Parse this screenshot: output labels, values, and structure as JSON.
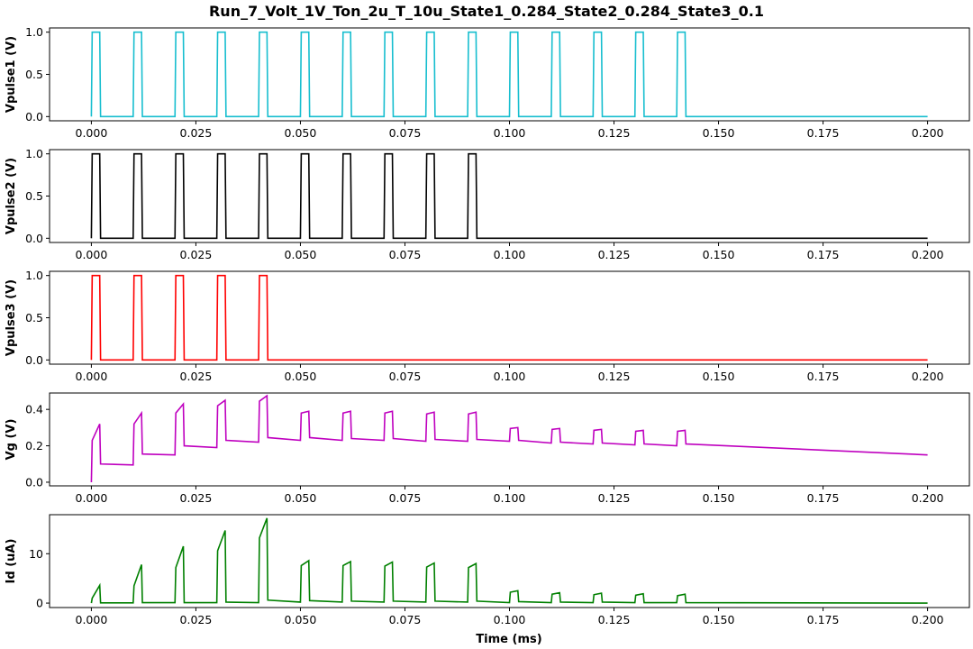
{
  "figure": {
    "title": "Run_7_Volt_1V_Ton_2u_T_10u_State1_0.284_State2_0.284_State3_0.1",
    "xlabel": "Time (ms)"
  },
  "chart_data": [
    {
      "type": "line",
      "ylabel": "Vpulse1 (V)",
      "color": "#17becf",
      "xlim": [
        -0.01,
        0.21
      ],
      "ylim": [
        -0.05,
        1.05
      ],
      "xticks": [
        "0.000",
        "0.025",
        "0.050",
        "0.075",
        "0.100",
        "0.125",
        "0.150",
        "0.175",
        "0.200"
      ],
      "yticks": [
        "0.0",
        "0.5",
        "1.0"
      ],
      "signal": {
        "kind": "pulse",
        "period": 0.01,
        "ton": 0.002,
        "edge": 0.0002,
        "count": 15,
        "high": 1.0,
        "low": 0.0,
        "end": 0.2
      }
    },
    {
      "type": "line",
      "ylabel": "Vpulse2 (V)",
      "color": "#000000",
      "xlim": [
        -0.01,
        0.21
      ],
      "ylim": [
        -0.05,
        1.05
      ],
      "xticks": [
        "0.000",
        "0.025",
        "0.050",
        "0.075",
        "0.100",
        "0.125",
        "0.150",
        "0.175",
        "0.200"
      ],
      "yticks": [
        "0.0",
        "0.5",
        "1.0"
      ],
      "signal": {
        "kind": "pulse",
        "period": 0.01,
        "ton": 0.002,
        "edge": 0.0002,
        "count": 10,
        "high": 1.0,
        "low": 0.0,
        "end": 0.2
      }
    },
    {
      "type": "line",
      "ylabel": "Vpulse3 (V)",
      "color": "#ff0000",
      "xlim": [
        -0.01,
        0.21
      ],
      "ylim": [
        -0.05,
        1.05
      ],
      "xticks": [
        "0.000",
        "0.025",
        "0.050",
        "0.075",
        "0.100",
        "0.125",
        "0.150",
        "0.175",
        "0.200"
      ],
      "yticks": [
        "0.0",
        "0.5",
        "1.0"
      ],
      "signal": {
        "kind": "pulse",
        "period": 0.01,
        "ton": 0.002,
        "edge": 0.0002,
        "count": 5,
        "high": 1.0,
        "low": 0.0,
        "end": 0.2
      }
    },
    {
      "type": "line",
      "ylabel": "Vg (V)",
      "color": "#bf00bf",
      "xlim": [
        -0.01,
        0.21
      ],
      "ylim": [
        -0.02,
        0.49
      ],
      "xticks": [
        "0.000",
        "0.025",
        "0.050",
        "0.075",
        "0.100",
        "0.125",
        "0.150",
        "0.175",
        "0.200"
      ],
      "yticks": [
        "0.0",
        "0.2",
        "0.4"
      ],
      "x": [
        0,
        0.0002,
        0.002,
        0.0022,
        0.01,
        0.0102,
        0.012,
        0.0122,
        0.02,
        0.0202,
        0.022,
        0.0222,
        0.03,
        0.0302,
        0.032,
        0.0322,
        0.04,
        0.0402,
        0.042,
        0.0422,
        0.05,
        0.0502,
        0.052,
        0.0522,
        0.06,
        0.0602,
        0.062,
        0.0622,
        0.07,
        0.0702,
        0.072,
        0.0722,
        0.08,
        0.0802,
        0.082,
        0.0822,
        0.09,
        0.0902,
        0.092,
        0.0922,
        0.1,
        0.1002,
        0.102,
        0.1022,
        0.11,
        0.1102,
        0.112,
        0.1122,
        0.12,
        0.1202,
        0.122,
        0.1222,
        0.13,
        0.1302,
        0.132,
        0.1322,
        0.14,
        0.1402,
        0.142,
        0.1422,
        0.2
      ],
      "y": [
        0,
        0.23,
        0.32,
        0.1,
        0.095,
        0.32,
        0.38,
        0.155,
        0.15,
        0.38,
        0.43,
        0.2,
        0.19,
        0.42,
        0.45,
        0.23,
        0.22,
        0.445,
        0.475,
        0.245,
        0.23,
        0.38,
        0.39,
        0.245,
        0.23,
        0.38,
        0.39,
        0.24,
        0.23,
        0.38,
        0.39,
        0.24,
        0.225,
        0.375,
        0.385,
        0.235,
        0.225,
        0.375,
        0.385,
        0.235,
        0.225,
        0.295,
        0.3,
        0.23,
        0.215,
        0.29,
        0.295,
        0.22,
        0.21,
        0.285,
        0.29,
        0.215,
        0.205,
        0.28,
        0.285,
        0.21,
        0.2,
        0.28,
        0.285,
        0.21,
        0.15
      ]
    },
    {
      "type": "line",
      "ylabel": "Id (uA)",
      "color": "#008000",
      "xlim": [
        -0.01,
        0.21
      ],
      "ylim": [
        -0.9,
        17.9
      ],
      "xticks": [
        "0.000",
        "0.025",
        "0.050",
        "0.075",
        "0.100",
        "0.125",
        "0.150",
        "0.175",
        "0.200"
      ],
      "yticks": [
        "0",
        "10"
      ],
      "x": [
        0,
        0.0002,
        0.002,
        0.0022,
        0.01,
        0.0102,
        0.012,
        0.0122,
        0.02,
        0.0202,
        0.022,
        0.0222,
        0.03,
        0.0302,
        0.032,
        0.0322,
        0.04,
        0.0402,
        0.042,
        0.0422,
        0.05,
        0.0502,
        0.052,
        0.0522,
        0.06,
        0.0602,
        0.062,
        0.0622,
        0.07,
        0.0702,
        0.072,
        0.0722,
        0.08,
        0.0802,
        0.082,
        0.0822,
        0.09,
        0.0902,
        0.092,
        0.0922,
        0.1,
        0.1002,
        0.102,
        0.1022,
        0.11,
        0.1102,
        0.112,
        0.1122,
        0.12,
        0.1202,
        0.122,
        0.1222,
        0.13,
        0.1302,
        0.132,
        0.1322,
        0.14,
        0.1402,
        0.142,
        0.1422,
        0.2
      ],
      "y": [
        0,
        1.0,
        3.6,
        0.05,
        0.05,
        3.5,
        7.8,
        0.1,
        0.1,
        7.2,
        11.5,
        0.1,
        0.1,
        10.6,
        14.7,
        0.2,
        0.1,
        13.2,
        17.2,
        0.6,
        0.2,
        7.6,
        8.6,
        0.5,
        0.2,
        7.6,
        8.4,
        0.4,
        0.2,
        7.5,
        8.3,
        0.4,
        0.2,
        7.3,
        8.1,
        0.4,
        0.2,
        7.2,
        8.0,
        0.4,
        0.1,
        2.2,
        2.5,
        0.3,
        0.1,
        1.8,
        2.1,
        0.2,
        0.1,
        1.7,
        2.0,
        0.2,
        0.1,
        1.6,
        1.9,
        0.1,
        0.1,
        1.5,
        1.8,
        0.1,
        0.0
      ]
    }
  ]
}
